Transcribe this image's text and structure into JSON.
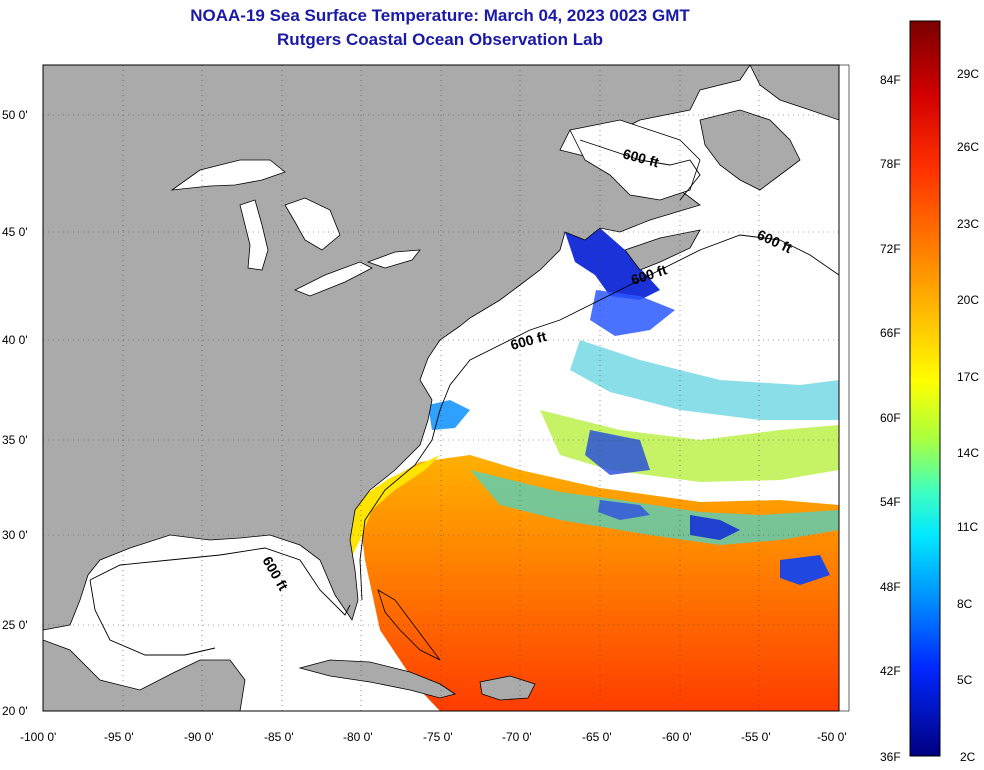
{
  "title": "NOAA-19 Sea Surface Temperature:  March 04, 2023 0023 GMT",
  "subtitle": "Rutgers Coastal Ocean Observation Lab",
  "lat_ticks": [
    "50 0'",
    "45 0'",
    "40 0'",
    "35 0'",
    "30 0'",
    "25 0'",
    "20 0'"
  ],
  "lon_ticks": [
    "-100 0'",
    "-95 0'",
    "-90 0'",
    "-85 0'",
    "-80 0'",
    "-75 0'",
    "-70 0'",
    "-65 0'",
    "-60 0'",
    "-55 0'",
    "-50 0'"
  ],
  "contour_labels": [
    "600 ft",
    "600 ft",
    "600 ft",
    "600 ft",
    "600 ft"
  ],
  "colorbar": {
    "fahrenheit": [
      "84F",
      "78F",
      "72F",
      "66F",
      "60F",
      "54F",
      "48F",
      "42F",
      "36F"
    ],
    "celsius": [
      "29C",
      "26C",
      "23C",
      "20C",
      "17C",
      "14C",
      "11C",
      "8C",
      "5C",
      "2C"
    ],
    "colors": [
      "#7a0000",
      "#c80000",
      "#ff2800",
      "#ff7800",
      "#ffb400",
      "#ffff00",
      "#a8ff40",
      "#40ffc0",
      "#00c8ff",
      "#0064ff",
      "#0000c8",
      "#000080"
    ]
  },
  "colors": {
    "land": "#aaaaaa",
    "water_no_data": "#ffffff",
    "title": "#1a1aa6"
  }
}
